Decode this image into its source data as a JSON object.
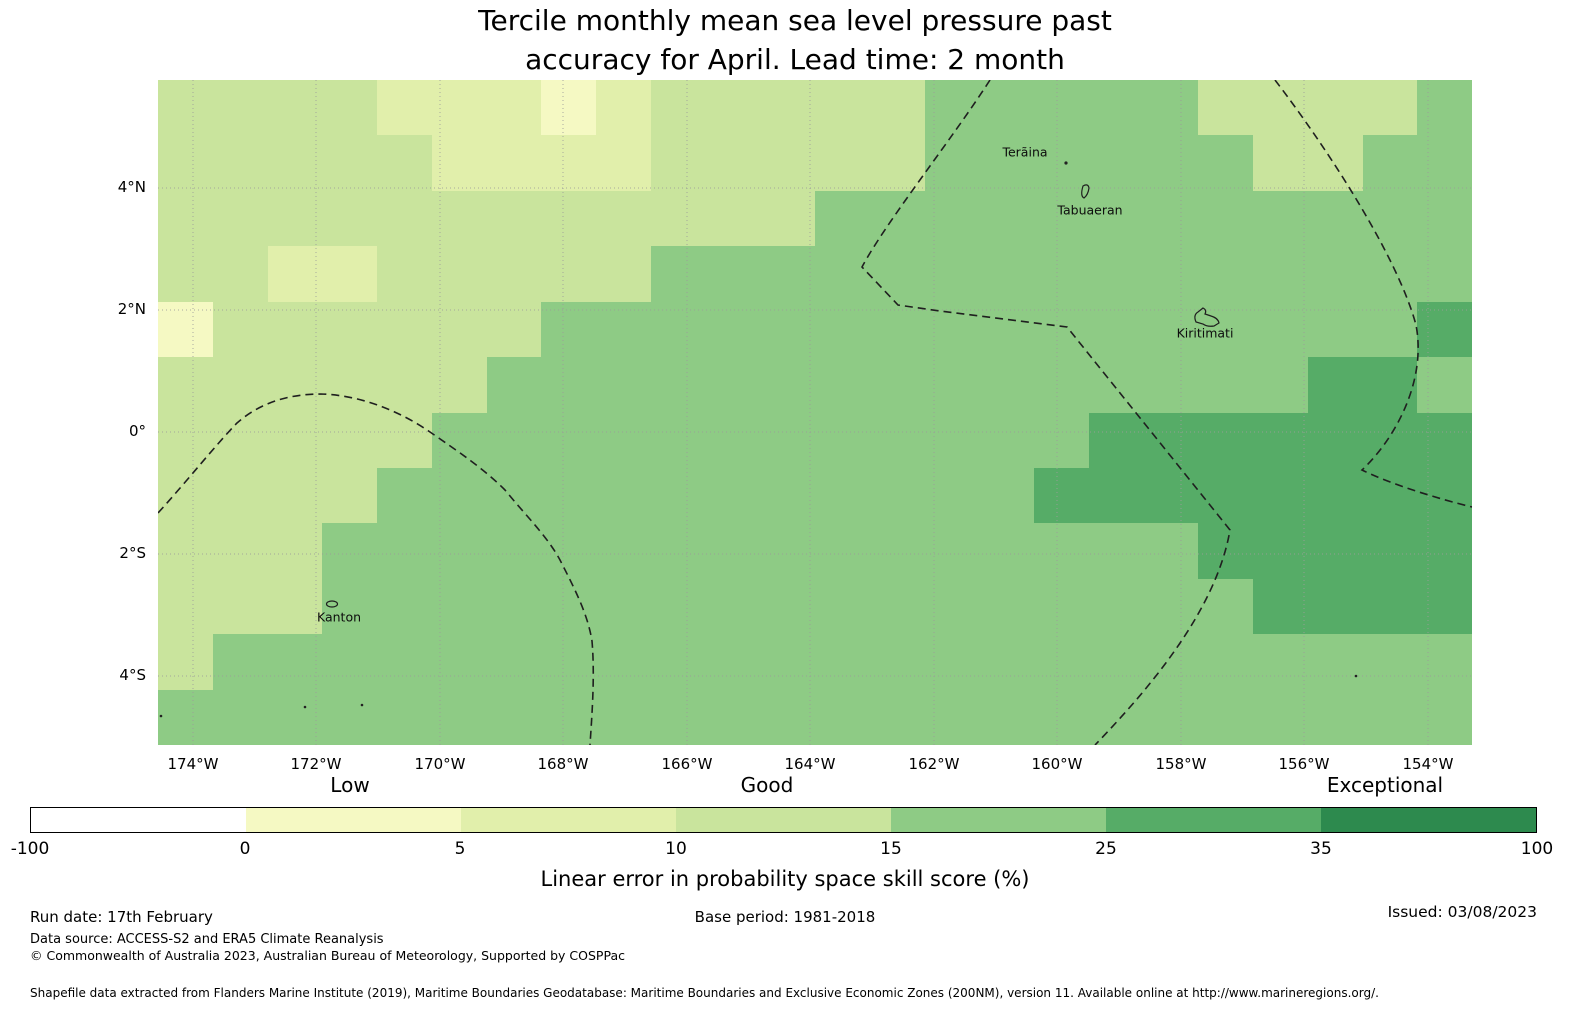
{
  "title": {
    "line1": "Tercile monthly mean sea level pressure past",
    "line2": "accuracy for April. Lead time: 2 month"
  },
  "map": {
    "x_ticks": [
      "174°W",
      "172°W",
      "170°W",
      "168°W",
      "166°W",
      "164°W",
      "162°W",
      "160°W",
      "158°W",
      "156°W",
      "154°W"
    ],
    "y_ticks": [
      "4°N",
      "2°N",
      "0°",
      "2°S",
      "4°S"
    ],
    "island_labels": {
      "teraina": "Terãina",
      "tabuaeran": "Tabuaeran",
      "kiritimati": "Kiritimati",
      "kanton": "Kanton"
    }
  },
  "legend": {
    "qualitative": {
      "low": "Low",
      "good": "Good",
      "exceptional": "Exceptional"
    },
    "ticks": [
      "-100",
      "0",
      "5",
      "10",
      "15",
      "25",
      "35",
      "100"
    ],
    "label": "Linear error in probability space skill score (%)",
    "colors": [
      "#ffffff",
      "#f5f9c3",
      "#e1efab",
      "#c9e49d",
      "#8ecb85",
      "#56ac67",
      "#2d8a4e"
    ]
  },
  "footer": {
    "run_date": "Run date: 17th February",
    "base_period": "Base period: 1981-2018",
    "issued": "Issued: 03/08/2023",
    "data_source": "Data source: ACCESS-S2 and ERA5 Climate Reanalysis",
    "copyright": "© Commonwealth of Australia 2023, Australian Bureau of Meteorology, Supported by COSPPac",
    "shapefile": "Shapefile data extracted from Flanders Marine Institute (2019), Maritime Boundaries Geodatabase: Maritime Boundaries and Exclusive Economic Zones (200NM), version 11. Available online at http://www.marineregions.org/."
  },
  "chart_data": {
    "type": "heatmap",
    "title": "Tercile monthly mean sea level pressure past accuracy for April. Lead time: 2 month",
    "colorbar_label": "Linear error in probability space skill score (%)",
    "skill_categories": [
      "Low",
      "Good",
      "Exceptional"
    ],
    "bins": [
      -100,
      0,
      5,
      10,
      15,
      25,
      35,
      100
    ],
    "bin_colors": [
      "#ffffff",
      "#f5f9c3",
      "#e1efab",
      "#c9e49d",
      "#8ecb85",
      "#56ac67",
      "#2d8a4e"
    ],
    "lon_ticks": [
      "174°W",
      "172°W",
      "170°W",
      "168°W",
      "166°W",
      "164°W",
      "162°W",
      "160°W",
      "158°W",
      "156°W",
      "154°W"
    ],
    "lat_ticks": [
      "4°N",
      "2°N",
      "0°",
      "2°S",
      "4°S"
    ],
    "islands": [
      "Terãina",
      "Tabuaeran",
      "Kiritimati",
      "Kanton"
    ],
    "boundaries": "Exclusive Economic Zone maritime boundaries shown as dashed lines",
    "grid_note": "Approximate skill-score bin index per cell (index into bin_colors); 12 rows x 24 cols, north to south, west to east. Bin 3 = 10-15%, bin 4 = 15-25%, bin 5 = 25-35%.",
    "grid": [
      [
        3,
        3,
        3,
        3,
        2,
        2,
        2,
        1,
        2,
        3,
        3,
        3,
        3,
        3,
        4,
        4,
        4,
        4,
        4,
        3,
        3,
        3,
        3,
        4
      ],
      [
        3,
        3,
        3,
        3,
        3,
        2,
        2,
        2,
        2,
        3,
        3,
        3,
        3,
        3,
        4,
        4,
        4,
        4,
        4,
        4,
        3,
        3,
        4,
        4
      ],
      [
        3,
        3,
        3,
        3,
        3,
        3,
        3,
        3,
        3,
        3,
        3,
        3,
        4,
        4,
        4,
        4,
        4,
        4,
        4,
        4,
        4,
        4,
        4,
        4
      ],
      [
        3,
        3,
        2,
        2,
        3,
        3,
        3,
        3,
        3,
        4,
        4,
        4,
        4,
        4,
        4,
        4,
        4,
        4,
        4,
        4,
        4,
        4,
        4,
        4
      ],
      [
        1,
        3,
        3,
        3,
        3,
        3,
        3,
        4,
        4,
        4,
        4,
        4,
        4,
        4,
        4,
        4,
        4,
        4,
        4,
        4,
        4,
        4,
        4,
        5
      ],
      [
        3,
        3,
        3,
        3,
        3,
        3,
        4,
        4,
        4,
        4,
        4,
        4,
        4,
        4,
        4,
        4,
        4,
        4,
        4,
        4,
        4,
        5,
        5,
        4
      ],
      [
        3,
        3,
        3,
        3,
        3,
        4,
        4,
        4,
        4,
        4,
        4,
        4,
        4,
        4,
        4,
        4,
        4,
        5,
        5,
        5,
        5,
        5,
        5,
        5
      ],
      [
        3,
        3,
        3,
        3,
        4,
        4,
        4,
        4,
        4,
        4,
        4,
        4,
        4,
        4,
        4,
        4,
        5,
        5,
        5,
        5,
        5,
        5,
        5,
        5
      ],
      [
        3,
        3,
        3,
        4,
        4,
        4,
        4,
        4,
        4,
        4,
        4,
        4,
        4,
        4,
        4,
        4,
        4,
        4,
        4,
        5,
        5,
        5,
        5,
        5
      ],
      [
        3,
        3,
        3,
        4,
        4,
        4,
        4,
        4,
        4,
        4,
        4,
        4,
        4,
        4,
        4,
        4,
        4,
        4,
        4,
        4,
        5,
        5,
        5,
        5
      ],
      [
        3,
        4,
        4,
        4,
        4,
        4,
        4,
        4,
        4,
        4,
        4,
        4,
        4,
        4,
        4,
        4,
        4,
        4,
        4,
        4,
        4,
        4,
        4,
        4
      ],
      [
        4,
        4,
        4,
        4,
        4,
        4,
        4,
        4,
        4,
        4,
        4,
        4,
        4,
        4,
        4,
        4,
        4,
        4,
        4,
        4,
        4,
        4,
        4,
        4
      ]
    ]
  }
}
